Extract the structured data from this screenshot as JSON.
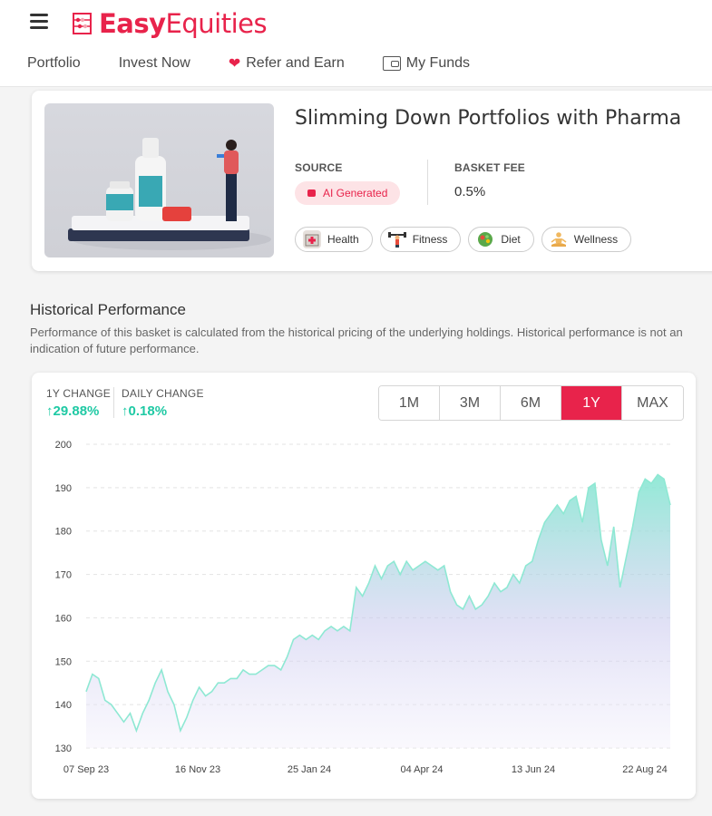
{
  "brand": {
    "easy": "Easy",
    "equities": "Equities",
    "accent": "#e8234b"
  },
  "nav": {
    "items": [
      {
        "label": "Portfolio"
      },
      {
        "label": "Invest Now"
      },
      {
        "label": "Refer and Earn",
        "icon": "heart-icon"
      },
      {
        "label": "My Funds",
        "icon": "wallet-icon"
      }
    ]
  },
  "basket": {
    "title": "Slimming Down Portfolios with Pharma",
    "source_label": "SOURCE",
    "source_value": "AI Generated",
    "fee_label": "BASKET FEE",
    "fee_value": "0.5%",
    "tags": [
      {
        "label": "Health",
        "icon": "hospital-icon"
      },
      {
        "label": "Fitness",
        "icon": "weightlifter-icon"
      },
      {
        "label": "Diet",
        "icon": "salad-icon"
      },
      {
        "label": "Wellness",
        "icon": "meditation-icon"
      }
    ]
  },
  "historical": {
    "title": "Historical Performance",
    "description": "Performance of this basket is calculated from the historical pricing of the underlying holdings. Historical performance is not an indication of future performance.",
    "change_1y_label": "1Y CHANGE",
    "change_1y_value": "29.88%",
    "daily_change_label": "DAILY CHANGE",
    "daily_change_value": "0.18%",
    "ranges": [
      "1M",
      "3M",
      "6M",
      "1Y",
      "MAX"
    ],
    "active_range": "1Y"
  },
  "chart_data": {
    "type": "area",
    "ylim": [
      130,
      200
    ],
    "yticks": [
      130,
      140,
      150,
      160,
      170,
      180,
      190,
      200
    ],
    "xticks": [
      "07 Sep 23",
      "16 Nov 23",
      "25 Jan 24",
      "04 Apr 24",
      "13 Jun 24",
      "22 Aug 24"
    ],
    "grid": true,
    "line_color": "#8ee8d3",
    "series": [
      {
        "values": [
          143,
          147,
          146,
          141,
          140,
          138,
          136,
          138,
          134,
          138,
          141,
          145,
          148,
          143,
          140,
          134,
          137,
          141,
          144,
          142,
          143,
          145,
          145,
          146,
          146,
          148,
          147,
          147,
          148,
          149,
          149,
          148,
          151,
          155,
          156,
          155,
          156,
          155,
          157,
          158,
          157,
          158,
          157,
          167,
          165,
          168,
          172,
          169,
          172,
          173,
          170,
          173,
          171,
          172,
          173,
          172,
          171,
          172,
          166,
          163,
          162,
          165,
          162,
          163,
          165,
          168,
          166,
          167,
          170,
          168,
          172,
          173,
          178,
          182,
          184,
          186,
          184,
          187,
          188,
          182,
          190,
          191,
          178,
          172,
          181,
          167,
          174,
          181,
          189,
          192,
          191,
          193,
          192,
          186
        ]
      }
    ]
  }
}
